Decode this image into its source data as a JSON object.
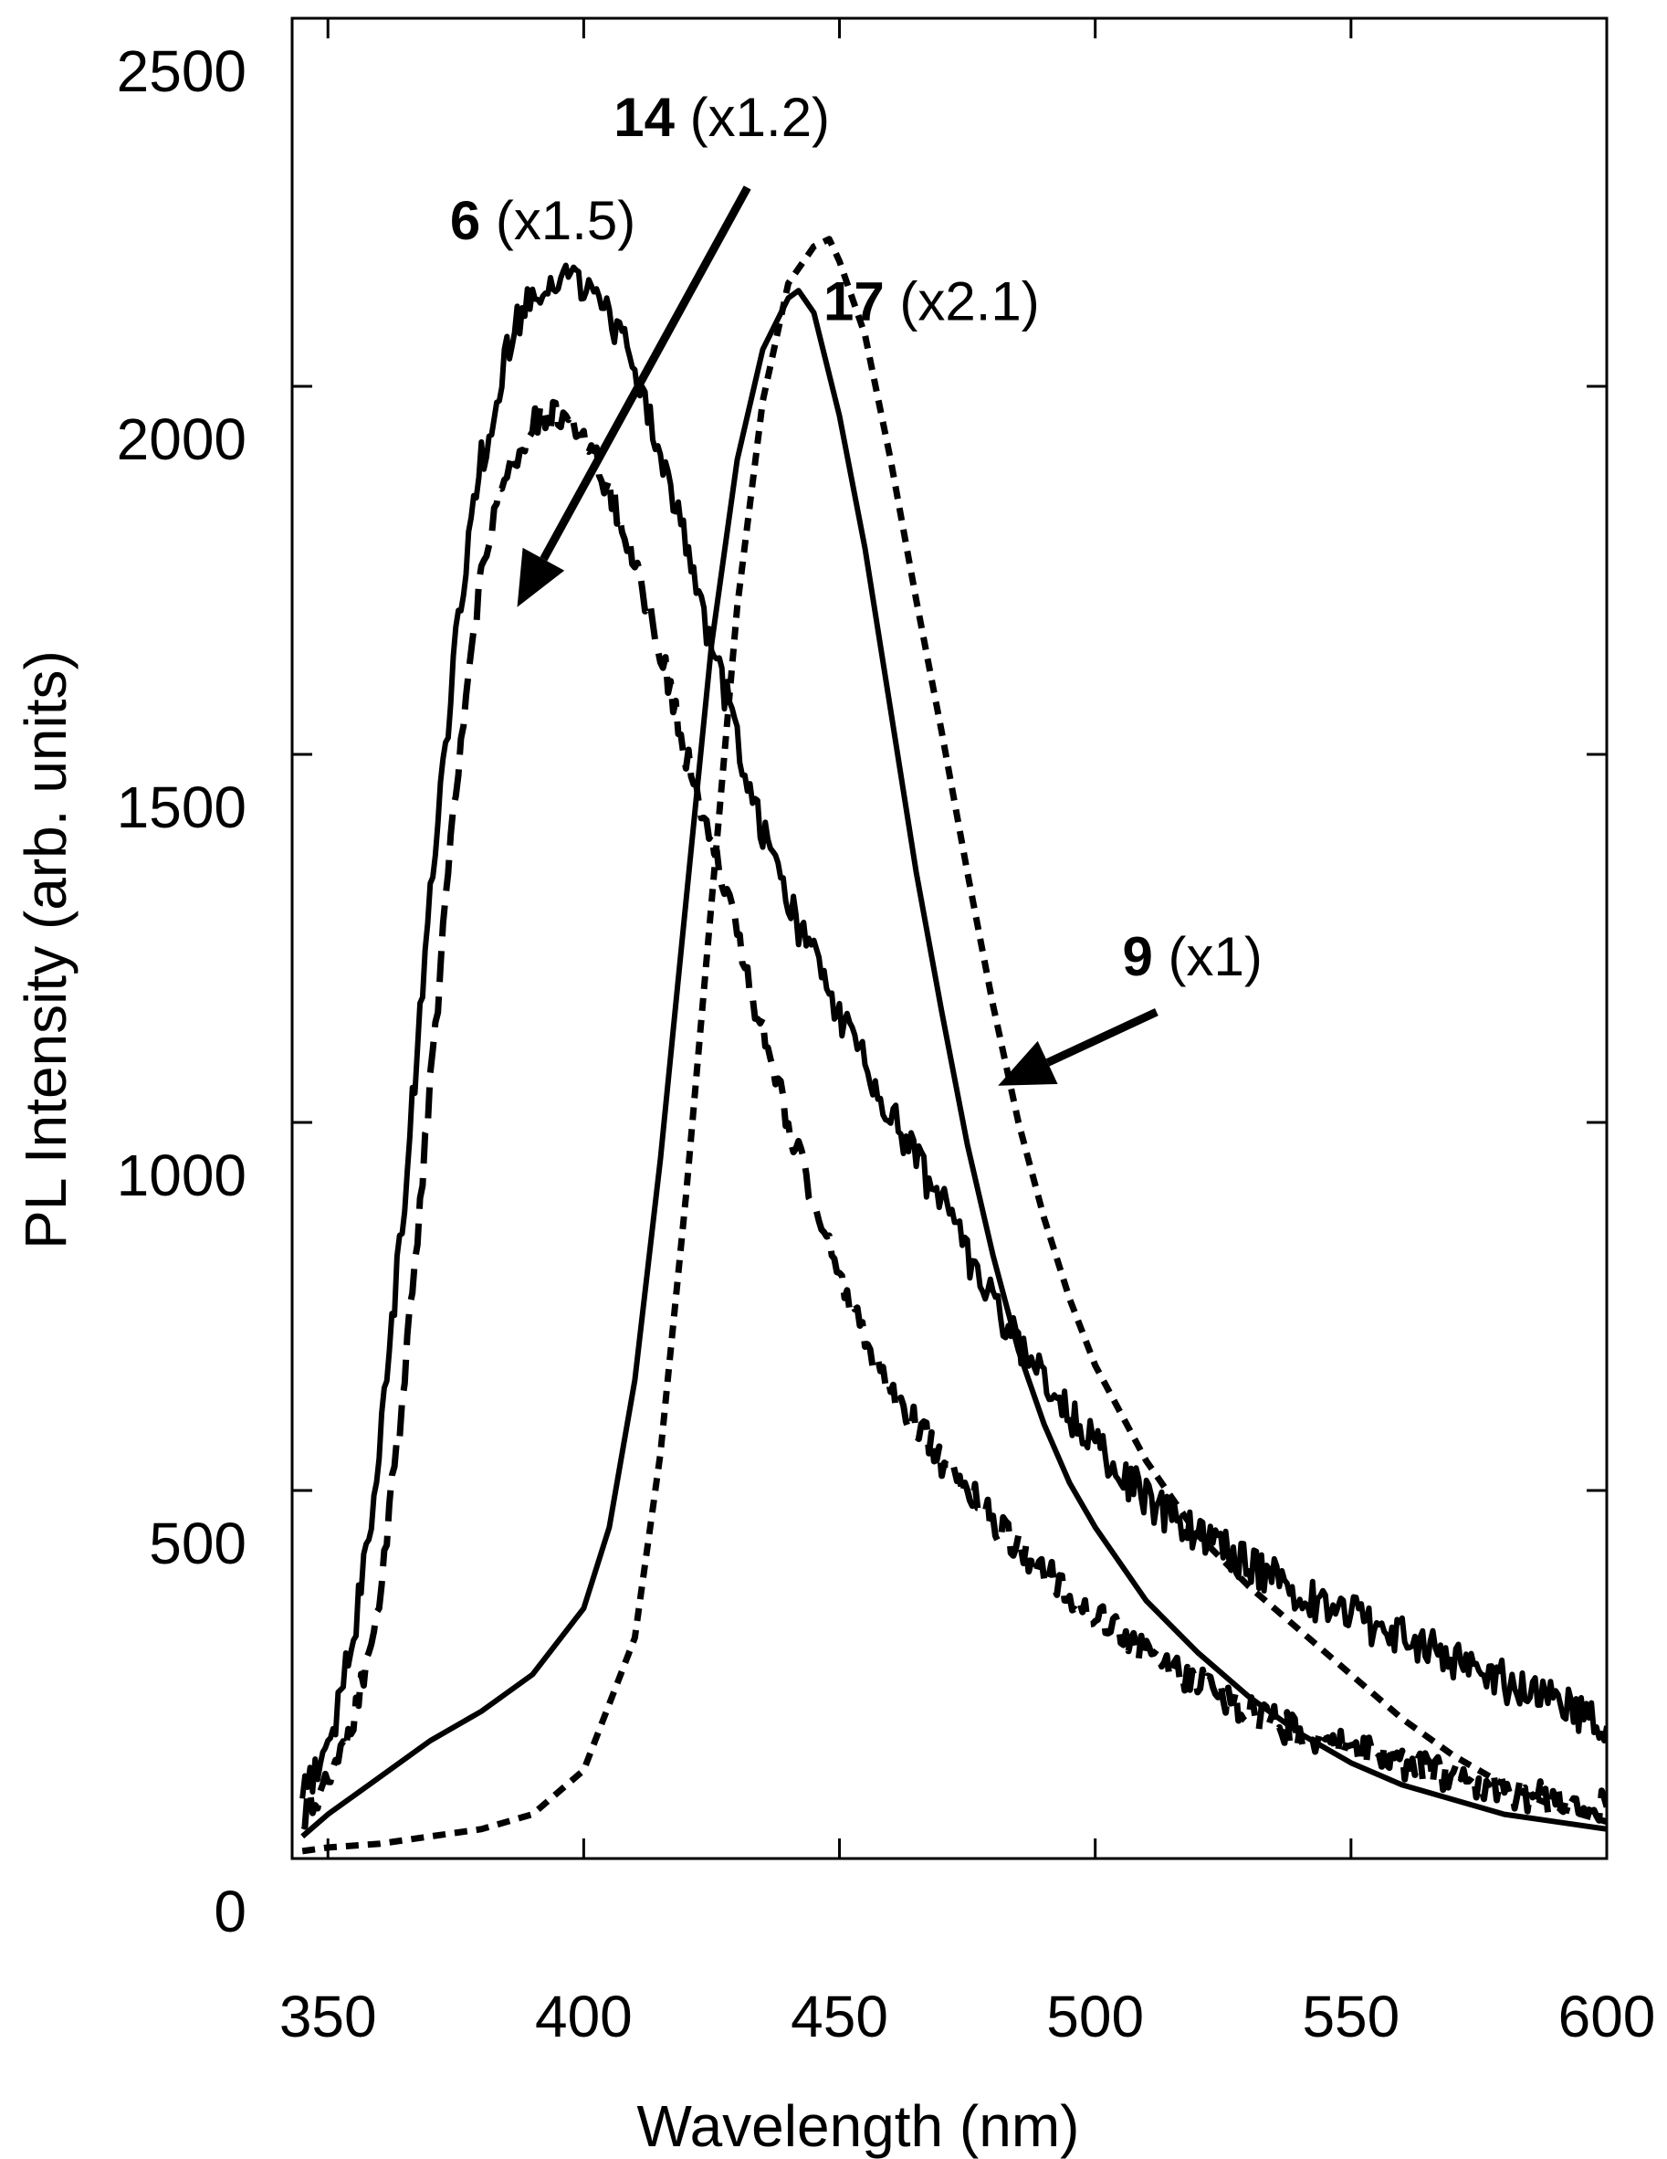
{
  "chart_data": {
    "type": "line",
    "title": "",
    "xlabel": "Wavelength (nm)",
    "ylabel": "PL Intensity (arb. units)",
    "xlim": [
      343,
      600
    ],
    "ylim": [
      0,
      2500
    ],
    "x_ticks": [
      350,
      400,
      450,
      500,
      550,
      600
    ],
    "y_ticks": [
      0,
      500,
      1000,
      1500,
      2000,
      2500
    ],
    "x_tick_labels": [
      "350",
      "400",
      "450",
      "500",
      "550",
      "600"
    ],
    "y_tick_labels": [
      "0",
      "500",
      "1000",
      "1500",
      "2000",
      "2500"
    ],
    "grid": false,
    "legend": "none",
    "series": [
      {
        "annotation": "6",
        "scale": "(x1.5)",
        "style": "solid-noisy",
        "x": [
          345,
          350,
          355,
          360,
          365,
          370,
          375,
          380,
          385,
          390,
          395,
          400,
          405,
          410,
          415,
          420,
          425,
          430,
          435,
          440,
          445,
          450,
          455,
          460,
          465,
          470,
          475,
          480,
          485,
          490,
          495,
          500,
          510,
          520,
          530,
          540,
          550,
          560,
          570,
          580,
          590,
          600
        ],
        "y": [
          80,
          150,
          300,
          550,
          900,
          1300,
          1650,
          1900,
          2050,
          2130,
          2150,
          2140,
          2100,
          2030,
          1900,
          1780,
          1650,
          1520,
          1400,
          1300,
          1220,
          1150,
          1080,
          1010,
          950,
          890,
          820,
          760,
          700,
          650,
          600,
          560,
          490,
          440,
          400,
          360,
          330,
          300,
          270,
          240,
          210,
          180
        ]
      },
      {
        "annotation": "14",
        "scale": "(x1.2)",
        "style": "dashed",
        "x": [
          345,
          350,
          355,
          360,
          365,
          370,
          375,
          380,
          385,
          390,
          395,
          400,
          405,
          410,
          415,
          420,
          425,
          430,
          435,
          440,
          445,
          450,
          455,
          460,
          465,
          470,
          475,
          480,
          485,
          490,
          495,
          500,
          510,
          520,
          530,
          540,
          550,
          560,
          570,
          580,
          590,
          600
        ],
        "y": [
          60,
          100,
          180,
          350,
          650,
          1050,
          1450,
          1750,
          1880,
          1950,
          1960,
          1930,
          1860,
          1760,
          1640,
          1500,
          1380,
          1250,
          1120,
          1000,
          890,
          790,
          710,
          640,
          590,
          540,
          500,
          460,
          420,
          390,
          360,
          330,
          280,
          240,
          200,
          170,
          150,
          130,
          110,
          90,
          80,
          70
        ]
      },
      {
        "annotation": "9",
        "scale": "(x1)",
        "style": "solid",
        "x": [
          345,
          350,
          360,
          370,
          380,
          390,
          400,
          405,
          410,
          415,
          420,
          425,
          430,
          435,
          440,
          442,
          445,
          450,
          455,
          460,
          465,
          470,
          475,
          480,
          485,
          490,
          495,
          500,
          510,
          520,
          530,
          540,
          550,
          560,
          570,
          580,
          590,
          600
        ],
        "y": [
          30,
          60,
          110,
          160,
          200,
          250,
          340,
          450,
          650,
          950,
          1300,
          1650,
          1900,
          2050,
          2120,
          2130,
          2100,
          1960,
          1780,
          1560,
          1340,
          1150,
          970,
          820,
          690,
          590,
          510,
          450,
          350,
          280,
          220,
          170,
          130,
          100,
          80,
          60,
          50,
          40
        ]
      },
      {
        "annotation": "17",
        "scale": "(x2.1)",
        "style": "dotted",
        "x": [
          345,
          350,
          360,
          370,
          380,
          390,
          400,
          410,
          415,
          420,
          425,
          430,
          435,
          440,
          445,
          448,
          450,
          455,
          460,
          465,
          470,
          475,
          480,
          485,
          490,
          495,
          500,
          510,
          520,
          530,
          540,
          550,
          560,
          570,
          580,
          590,
          600
        ],
        "y": [
          10,
          15,
          20,
          30,
          40,
          60,
          120,
          300,
          550,
          900,
          1300,
          1700,
          1980,
          2140,
          2190,
          2200,
          2170,
          2070,
          1900,
          1710,
          1530,
          1340,
          1160,
          1000,
          870,
          760,
          670,
          540,
          440,
          370,
          310,
          250,
          190,
          140,
          100,
          70,
          50
        ]
      }
    ],
    "annotations": [
      {
        "series": "6",
        "x": 392,
        "y": 2200
      },
      {
        "series": "14",
        "x": 427,
        "y": 2340,
        "arrow_to": {
          "x": 387,
          "y": 1700
        }
      },
      {
        "series": "17",
        "x": 468,
        "y": 2090
      },
      {
        "series": "9",
        "x": 519,
        "y": 1200,
        "arrow_to": {
          "x": 481,
          "y": 1050
        }
      }
    ]
  }
}
